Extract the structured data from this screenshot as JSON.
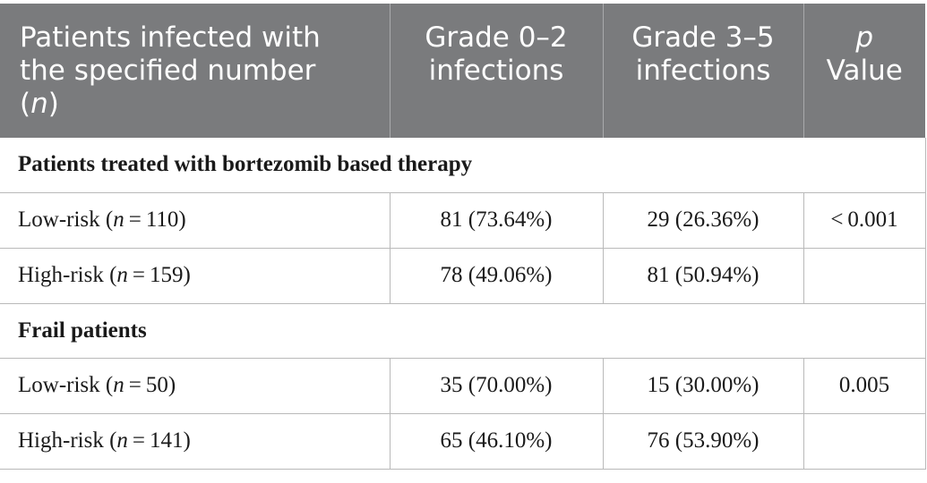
{
  "header": {
    "col1_line1": "Patients infected with",
    "col1_line2": "the specified number",
    "col1_paren_open": "(",
    "col1_n": "n",
    "col1_paren_close": ")",
    "col2_line1": "Grade 0–2",
    "col2_line2": "infections",
    "col3_line1": "Grade 3–5",
    "col3_line2": "infections",
    "col4_p": "p",
    "col4_value": "Value"
  },
  "sections": [
    {
      "title": "Patients treated with bortezomib based therapy",
      "rows": [
        {
          "label": "Low-risk (",
          "n_symbol": "n",
          "n_value": " = 110)",
          "grade_0_2": "81 (73.64%)",
          "grade_3_5": "29 (26.36%)",
          "p_value": "< 0.001"
        },
        {
          "label": "High-risk (",
          "n_symbol": "n",
          "n_value": " = 159)",
          "grade_0_2": "78 (49.06%)",
          "grade_3_5": "81 (50.94%)",
          "p_value": ""
        }
      ]
    },
    {
      "title": "Frail patients",
      "rows": [
        {
          "label": "Low-risk (",
          "n_symbol": "n",
          "n_value": " = 50)",
          "grade_0_2": "35 (70.00%)",
          "grade_3_5": "15 (30.00%)",
          "p_value": "0.005"
        },
        {
          "label": "High-risk (",
          "n_symbol": "n",
          "n_value": " = 141)",
          "grade_0_2": "65 (46.10%)",
          "grade_3_5": "76 (53.90%)",
          "p_value": ""
        }
      ]
    }
  ]
}
